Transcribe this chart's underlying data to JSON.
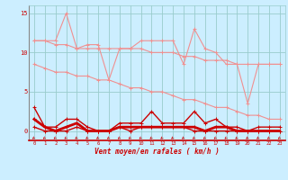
{
  "x": [
    0,
    1,
    2,
    3,
    4,
    5,
    6,
    7,
    8,
    9,
    10,
    11,
    12,
    13,
    14,
    15,
    16,
    17,
    18,
    19,
    20,
    21,
    22,
    23
  ],
  "line1": [
    11.5,
    11.5,
    11.5,
    15.0,
    10.5,
    11.0,
    11.0,
    6.5,
    10.5,
    10.5,
    11.5,
    11.5,
    11.5,
    11.5,
    8.5,
    13.0,
    10.5,
    10.0,
    8.5,
    8.5,
    3.5,
    8.5,
    8.5,
    8.5
  ],
  "line2": [
    11.5,
    11.5,
    11.0,
    11.0,
    10.5,
    10.5,
    10.5,
    10.5,
    10.5,
    10.5,
    10.5,
    10.0,
    10.0,
    10.0,
    9.5,
    9.5,
    9.0,
    9.0,
    9.0,
    8.5,
    8.5,
    8.5,
    8.5,
    8.5
  ],
  "line3": [
    8.5,
    8.0,
    7.5,
    7.5,
    7.0,
    7.0,
    6.5,
    6.5,
    6.0,
    5.5,
    5.5,
    5.0,
    5.0,
    4.5,
    4.0,
    4.0,
    3.5,
    3.0,
    3.0,
    2.5,
    2.0,
    2.0,
    1.5,
    1.5
  ],
  "line4": [
    3.0,
    0.5,
    0.5,
    1.5,
    1.5,
    0.5,
    0.0,
    0.0,
    1.0,
    1.0,
    1.0,
    2.5,
    1.0,
    1.0,
    1.0,
    2.5,
    1.0,
    1.5,
    0.5,
    0.5,
    0.0,
    0.5,
    0.5,
    0.5
  ],
  "line5": [
    1.5,
    0.5,
    0.0,
    0.5,
    1.0,
    0.0,
    0.0,
    0.0,
    0.5,
    0.5,
    0.5,
    0.5,
    0.5,
    0.5,
    0.5,
    0.5,
    0.0,
    0.5,
    0.5,
    0.0,
    0.0,
    0.0,
    0.0,
    0.0
  ],
  "line6": [
    0.5,
    0.0,
    0.0,
    0.0,
    0.5,
    0.0,
    0.0,
    0.0,
    0.5,
    0.0,
    0.5,
    0.5,
    0.5,
    0.5,
    0.5,
    0.0,
    0.0,
    0.0,
    0.0,
    0.0,
    0.0,
    0.0,
    0.0,
    0.0
  ],
  "xlabel": "Vent moyen/en rafales ( km/h )",
  "bg_color": "#cceeff",
  "grid_color": "#99cccc",
  "light_red": "#f09090",
  "dark_red": "#cc0000",
  "yticks": [
    0,
    5,
    10,
    15
  ],
  "ylim": [
    -1.2,
    16.0
  ],
  "xlim": [
    -0.5,
    23.5
  ]
}
